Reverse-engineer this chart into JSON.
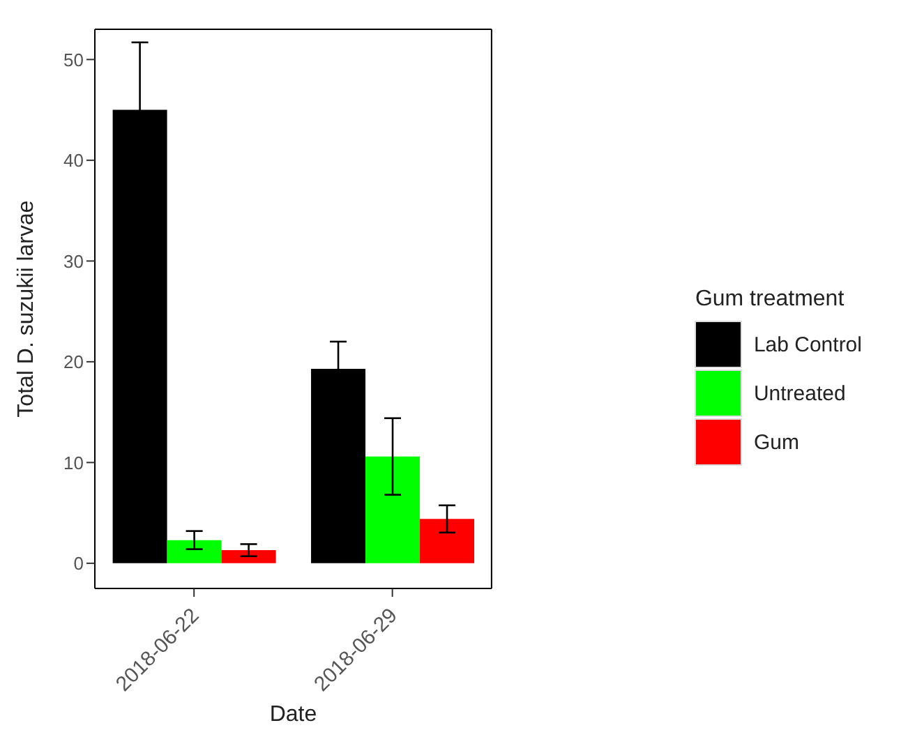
{
  "chart_data": {
    "type": "bar",
    "xlabel": "Date",
    "ylabel": "Total D. suzukii larvae",
    "legend_title": "Gum treatment",
    "categories": [
      "2018-06-22",
      "2018-06-29"
    ],
    "series": [
      {
        "name": "Lab Control",
        "color": "#000000",
        "values": [
          45,
          19.3
        ],
        "errors": [
          6.7,
          2.7
        ]
      },
      {
        "name": "Untreated",
        "color": "#00ff00",
        "values": [
          2.3,
          10.6
        ],
        "errors": [
          0.9,
          3.8
        ]
      },
      {
        "name": "Gum",
        "color": "#ff0000",
        "values": [
          1.3,
          4.4
        ],
        "errors": [
          0.6,
          1.35
        ]
      }
    ],
    "ylim": [
      -2.5,
      53
    ],
    "yticks": [
      0,
      10,
      20,
      30,
      40,
      50
    ],
    "legend": "right"
  }
}
